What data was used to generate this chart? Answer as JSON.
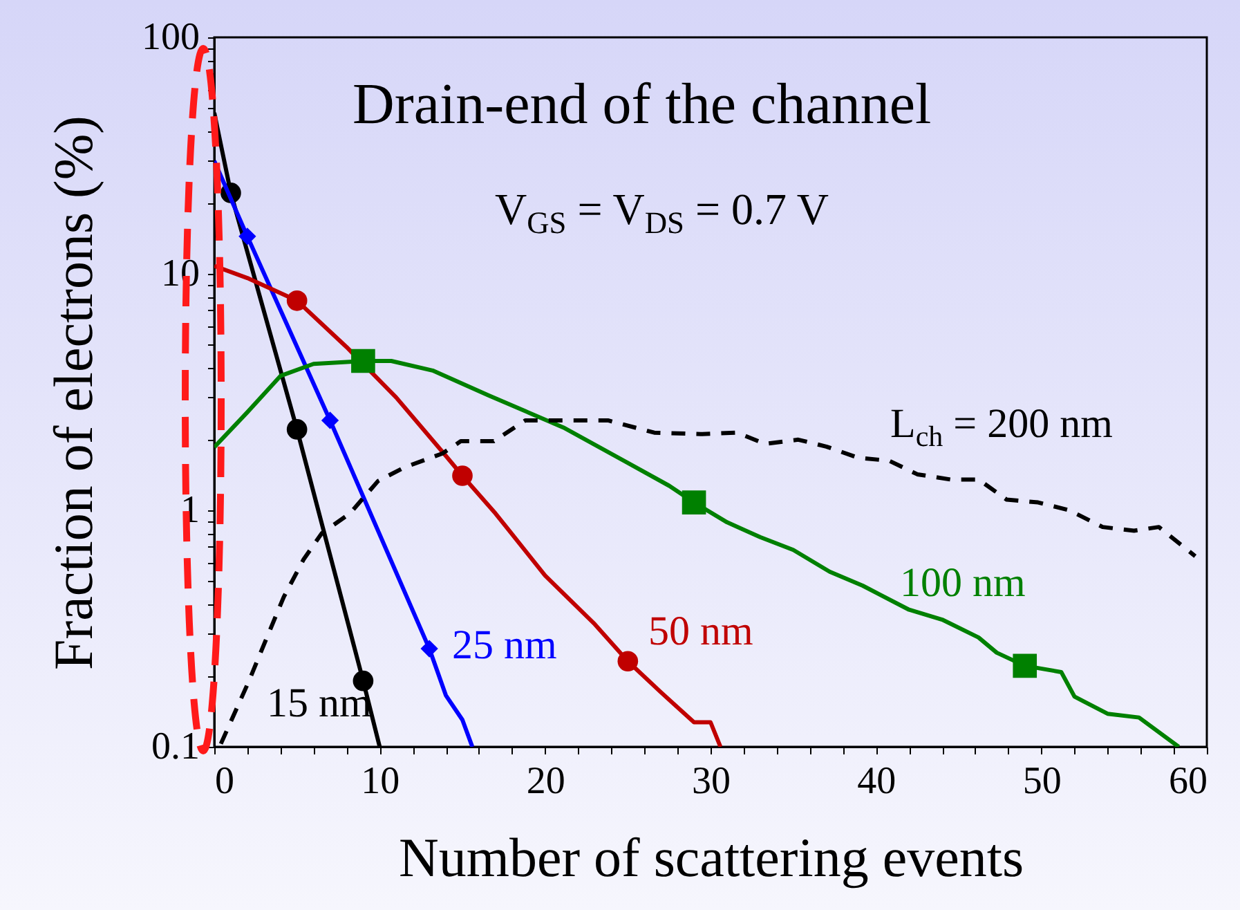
{
  "chart_data": {
    "type": "line",
    "title": "Drain-end of the channel",
    "annotations": [
      "V$_{GS}$ = V$_{DS}$ = 0.7 V"
    ],
    "xlabel": "Number of scattering events",
    "ylabel": "Fraction of electrons (%)",
    "log": "y",
    "xlim": [
      0,
      60
    ],
    "ylim": [
      0.1,
      100
    ],
    "xticks": [
      0,
      {
        "value": 2,
        "label": null
      },
      {
        "value": 4,
        "label": null
      },
      {
        "value": 6,
        "label": null
      },
      {
        "value": 8,
        "label": null
      },
      10,
      {
        "value": 12,
        "label": null
      },
      {
        "value": 14,
        "label": null
      },
      {
        "value": 16,
        "label": null
      },
      {
        "value": 18,
        "label": null
      },
      20,
      {
        "value": 22,
        "label": null
      },
      {
        "value": 24,
        "label": null
      },
      {
        "value": 26,
        "label": null
      },
      {
        "value": 28,
        "label": null
      },
      30,
      {
        "value": 32,
        "label": null
      },
      {
        "value": 34,
        "label": null
      },
      {
        "value": 36,
        "label": null
      },
      {
        "value": 38,
        "label": null
      },
      40,
      {
        "value": 42,
        "label": null
      },
      {
        "value": 44,
        "label": null
      },
      {
        "value": 46,
        "label": null
      },
      {
        "value": 48,
        "label": null
      },
      50,
      {
        "value": 52,
        "label": null
      },
      {
        "value": 54,
        "label": null
      },
      {
        "value": 56,
        "label": null
      },
      {
        "value": 58,
        "label": null
      },
      60
    ],
    "yticks": [
      0.1,
      {
        "value": 0.2,
        "label": null
      },
      {
        "value": 0.3,
        "label": null
      },
      {
        "value": 0.4,
        "label": null
      },
      {
        "value": 0.5,
        "label": null
      },
      {
        "value": 0.6,
        "label": null
      },
      {
        "value": 0.7,
        "label": null
      },
      {
        "value": 0.8,
        "label": null
      },
      {
        "value": 0.9,
        "label": null
      },
      1,
      {
        "value": 2,
        "label": null
      },
      {
        "value": 3,
        "label": null
      },
      {
        "value": 4,
        "label": null
      },
      {
        "value": 5,
        "label": null
      },
      {
        "value": 6,
        "label": null
      },
      {
        "value": 7,
        "label": null
      },
      {
        "value": 8,
        "label": null
      },
      {
        "value": 9,
        "label": null
      },
      10,
      {
        "value": 20,
        "label": null
      },
      {
        "value": 30,
        "label": null
      },
      {
        "value": 40,
        "label": null
      },
      {
        "value": 50,
        "label": null
      },
      {
        "value": 60,
        "label": null
      },
      {
        "value": 70,
        "label": null
      },
      {
        "value": 80,
        "label": null
      },
      {
        "value": 90,
        "label": null
      },
      100
    ],
    "series": [
      {
        "name": "15 nm",
        "color": "#000000",
        "x": [
          0,
          1,
          5,
          9,
          10
        ],
        "values": [
          48,
          22,
          2.2,
          0.19,
          0.1
        ]
      },
      {
        "type": "scatter",
        "marker": "circle",
        "color": "#000000",
        "x": [
          1,
          5,
          9
        ],
        "values": [
          22,
          2.2,
          0.19
        ]
      },
      {
        "name": "25 nm",
        "color": "#0000ff",
        "x": [
          0,
          2,
          7,
          13,
          14,
          15,
          15.6
        ],
        "values": [
          30,
          14.4,
          2.4,
          0.26,
          0.165,
          0.13,
          0.1
        ]
      },
      {
        "type": "scatter",
        "marker": "diamond",
        "color": "#0000ff",
        "x": [
          2,
          7,
          13
        ],
        "values": [
          14.4,
          2.4,
          0.26
        ]
      },
      {
        "name": "50 nm",
        "color": "#c00000",
        "x": [
          0,
          2,
          5,
          8,
          11,
          14,
          15,
          17,
          20,
          23,
          25,
          27,
          29,
          30,
          30.6
        ],
        "values": [
          10.8,
          9.6,
          7.7,
          4.9,
          3.0,
          1.7,
          1.4,
          0.97,
          0.53,
          0.33,
          0.23,
          0.17,
          0.127,
          0.127,
          0.1
        ]
      },
      {
        "type": "scatter",
        "marker": "circle",
        "color": "#c00000",
        "x": [
          5,
          15,
          25
        ],
        "values": [
          7.7,
          1.4,
          0.23
        ]
      },
      {
        "name": "100 nm",
        "color": "#008000",
        "x": [
          0,
          2,
          4,
          6,
          9,
          10.7,
          13.2,
          16.6,
          21.1,
          24.9,
          27.5,
          29,
          31,
          33,
          35,
          37.2,
          39.2,
          42,
          44,
          46.2,
          47.3,
          49,
          51.2,
          52,
          54,
          55.9,
          58.3
        ],
        "values": [
          1.85,
          2.6,
          3.7,
          4.16,
          4.28,
          4.28,
          3.9,
          3.06,
          2.24,
          1.6,
          1.27,
          1.08,
          0.89,
          0.77,
          0.68,
          0.55,
          0.48,
          0.38,
          0.345,
          0.29,
          0.25,
          0.22,
          0.207,
          0.163,
          0.138,
          0.133,
          0.1
        ]
      },
      {
        "type": "scatter",
        "marker": "square",
        "color": "#008000",
        "x": [
          9,
          29,
          49
        ],
        "values": [
          4.28,
          1.08,
          0.22
        ]
      },
      {
        "name": "L$_{ch}$ = 200 nm",
        "color": "#000000",
        "line_style": "dashed",
        "x": [
          0.4,
          2.1,
          2.9,
          4.2,
          5.4,
          6.5,
          8.2,
          9.9,
          11.5,
          13.8,
          14.9,
          16.9,
          18.8,
          21.1,
          23.8,
          26.6,
          29.4,
          31.6,
          33.3,
          35.3,
          37,
          38.9,
          40.8,
          42.5,
          44.5,
          46.2,
          47.9,
          49.8,
          51.7,
          53.7,
          55.6,
          57.1,
          59.3
        ],
        "values": [
          0.103,
          0.19,
          0.26,
          0.43,
          0.62,
          0.8,
          0.97,
          1.33,
          1.52,
          1.74,
          1.96,
          1.96,
          2.4,
          2.4,
          2.4,
          2.13,
          2.1,
          2.13,
          1.91,
          1.99,
          1.86,
          1.67,
          1.62,
          1.42,
          1.35,
          1.35,
          1.11,
          1.08,
          1.0,
          0.85,
          0.82,
          0.85,
          0.64
        ]
      }
    ]
  }
}
